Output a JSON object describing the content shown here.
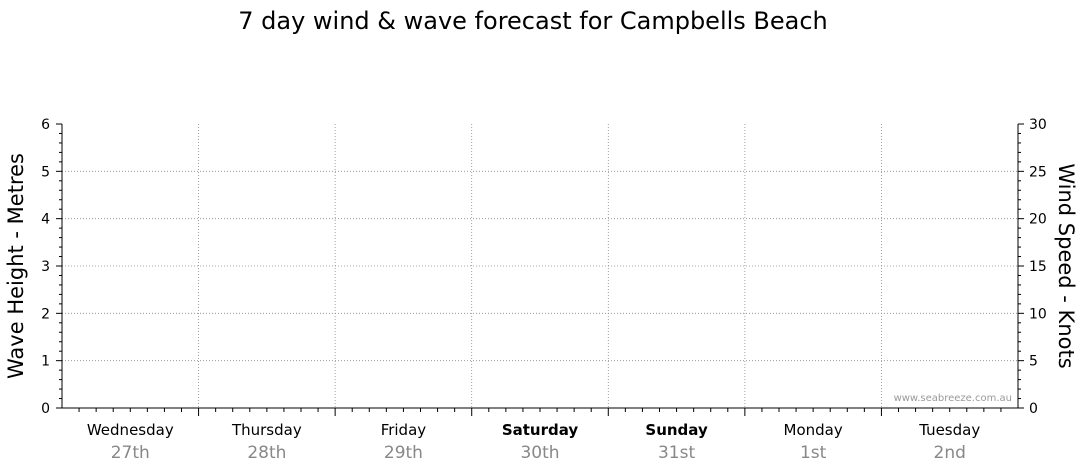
{
  "chart_data": {
    "type": "line",
    "title": "7 day wind & wave forecast for Campbells Beach",
    "left_axis": {
      "label": "Wave Height - Metres",
      "range": [
        0,
        6
      ],
      "ticks": [
        "0",
        "1",
        "2",
        "3",
        "4",
        "5",
        "6"
      ]
    },
    "right_axis": {
      "label": "Wind Speed - Knots",
      "range": [
        0,
        30
      ],
      "ticks": [
        "0",
        "5",
        "10",
        "15",
        "20",
        "25",
        "30"
      ]
    },
    "days": [
      {
        "day": "Wednesday",
        "date": "27th",
        "bold": false
      },
      {
        "day": "Thursday",
        "date": "28th",
        "bold": false
      },
      {
        "day": "Friday",
        "date": "29th",
        "bold": false
      },
      {
        "day": "Saturday",
        "date": "30th",
        "bold": true
      },
      {
        "day": "Sunday",
        "date": "31st",
        "bold": true
      },
      {
        "day": "Monday",
        "date": "1st",
        "bold": false
      },
      {
        "day": "Tuesday",
        "date": "2nd",
        "bold": false
      }
    ],
    "grid": true,
    "series": [],
    "watermark": "www.seabreeze.com.au"
  }
}
